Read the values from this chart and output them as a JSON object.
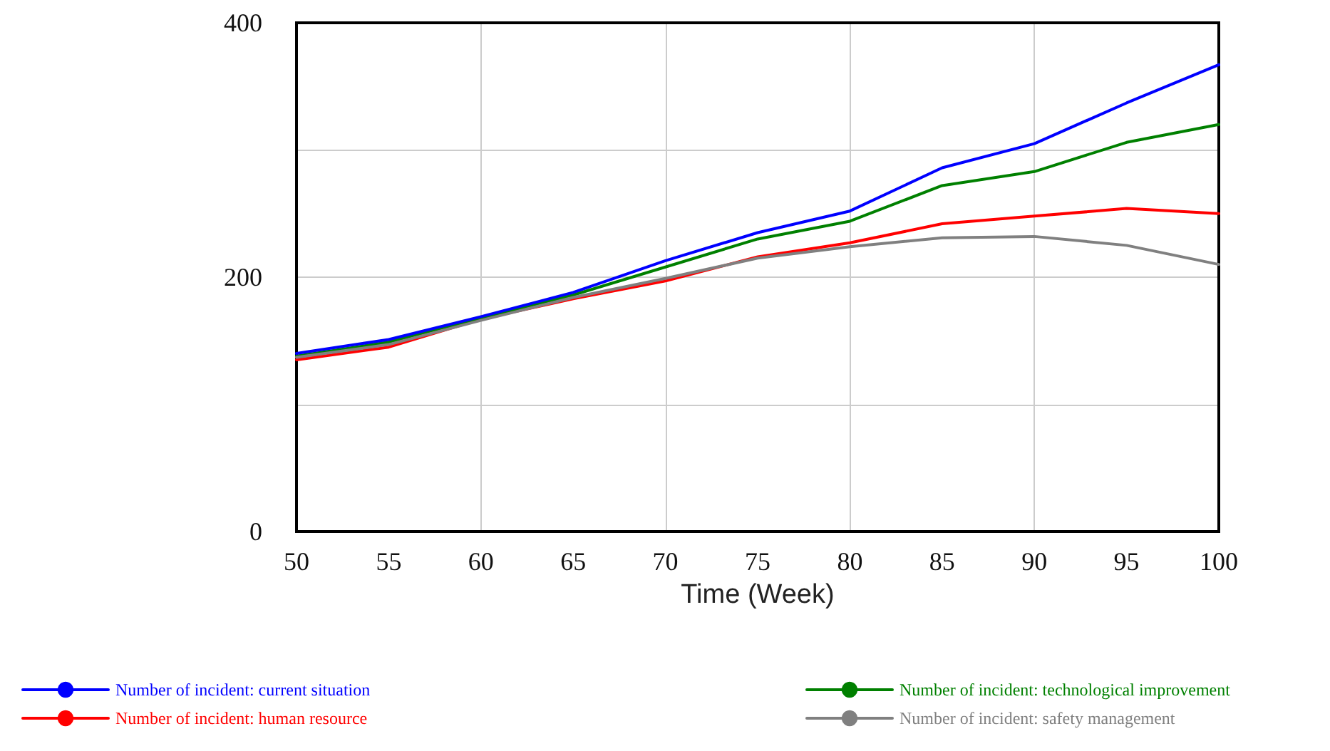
{
  "chart_data": {
    "type": "line",
    "xlabel": "Time (Week)",
    "x": [
      50,
      55,
      60,
      65,
      70,
      75,
      80,
      85,
      90,
      95,
      100
    ],
    "series": [
      {
        "name": "Number of incident: current situation",
        "color": "#0000ff",
        "values": [
          140,
          151,
          169,
          188,
          213,
          235,
          252,
          286,
          305,
          337,
          367
        ]
      },
      {
        "name": "Number of incident: human resource",
        "color": "#ff0000",
        "values": [
          135,
          145,
          167,
          183,
          197,
          216,
          227,
          242,
          248,
          254,
          250
        ]
      },
      {
        "name": "Number of incident: technological improvement",
        "color": "#008000",
        "values": [
          138,
          149,
          168,
          186,
          208,
          230,
          244,
          272,
          283,
          306,
          320
        ]
      },
      {
        "name": "Number of incident: safety management",
        "color": "#808080",
        "values": [
          137,
          147,
          166,
          184,
          199,
          215,
          224,
          231,
          232,
          225,
          210
        ]
      }
    ],
    "xlim": [
      50,
      100
    ],
    "xticks": [
      50,
      55,
      60,
      65,
      70,
      75,
      80,
      85,
      90,
      95,
      100
    ],
    "ylim": [
      0,
      400
    ],
    "yticks": [
      0,
      200,
      400
    ],
    "grid": true,
    "legend": "bottom",
    "marker": "none",
    "line_style": "solid"
  }
}
